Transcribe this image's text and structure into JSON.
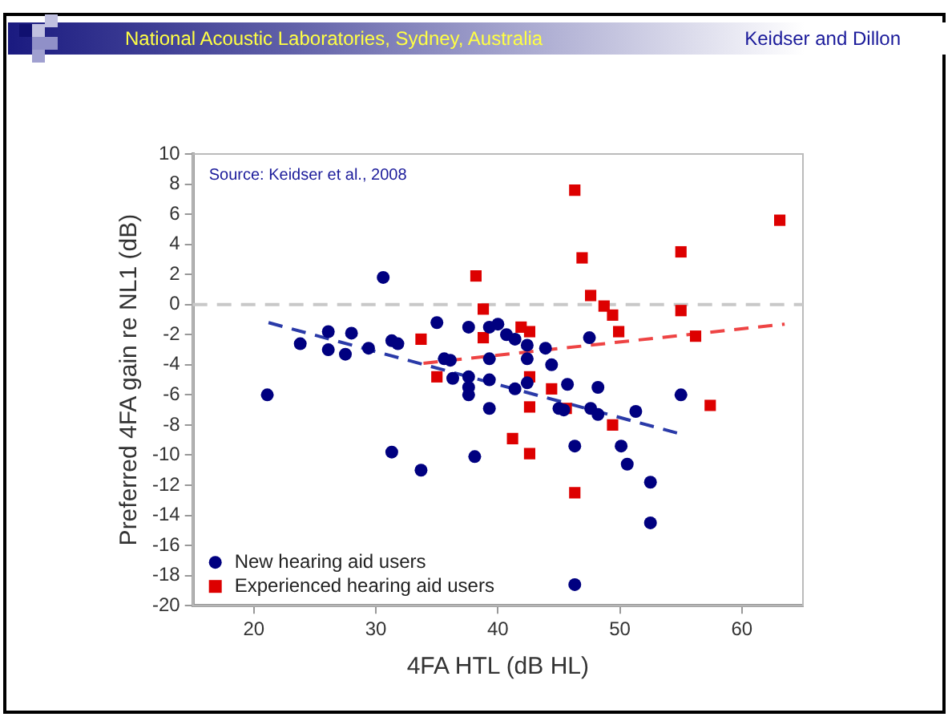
{
  "chart_data": {
    "type": "scatter",
    "xlabel": "4FA HTL (dB HL)",
    "ylabel": "Preferred 4FA gain re NL1 (dB)",
    "annotations": [
      "National Acoustic Laboratories, Sydney, Australia",
      "Keidser and Dillon",
      "Source: Keidser et al., 2008"
    ],
    "xlim": [
      15,
      65
    ],
    "xticks": [
      20,
      30,
      40,
      50,
      60
    ],
    "ylim": [
      -20,
      10
    ],
    "yticks": [
      -20,
      -18,
      -16,
      -14,
      -12,
      -10,
      -8,
      -6,
      -4,
      -2,
      0,
      2,
      4,
      6,
      8,
      10
    ],
    "legend": "bottom left",
    "ref_lines": [
      {
        "axis": "y",
        "value": 0,
        "color": "#c8c8c8",
        "line_style": "dashed"
      }
    ],
    "series": [
      {
        "name": "New hearing aid users",
        "color": "#000080",
        "marker": "circle",
        "x": [
          21.1,
          23.8,
          26.1,
          26.1,
          27.5,
          28.0,
          29.4,
          30.6,
          31.3,
          31.8,
          35.0,
          35.6,
          36.1,
          36.3,
          37.6,
          37.6,
          37.6,
          37.6,
          39.3,
          39.3,
          39.3,
          39.3,
          40.0,
          40.7,
          41.4,
          41.4,
          42.4,
          42.4,
          42.4,
          43.9,
          44.4,
          45.0,
          45.4,
          45.7,
          47.5,
          47.6,
          48.2,
          48.2,
          51.3,
          55.0,
          31.3,
          33.7,
          38.1,
          46.3,
          50.1,
          50.6,
          52.5,
          52.5,
          46.3
        ],
        "values": [
          -6.0,
          -2.6,
          -1.8,
          -3.0,
          -3.3,
          -1.9,
          -2.9,
          1.8,
          -2.4,
          -2.6,
          -1.2,
          -3.6,
          -3.7,
          -4.9,
          -1.5,
          -4.8,
          -5.5,
          -6.0,
          -1.5,
          -3.6,
          -5.0,
          -6.9,
          -1.3,
          -2.0,
          -2.3,
          -5.6,
          -2.7,
          -3.6,
          -5.2,
          -2.9,
          -4.0,
          -6.9,
          -7.0,
          -5.3,
          -2.2,
          -6.9,
          -7.3,
          -5.5,
          -7.1,
          -6.0,
          -9.8,
          -11.0,
          -10.1,
          -9.4,
          -9.4,
          -10.6,
          -11.8,
          -14.5,
          -18.6
        ]
      },
      {
        "name": "Experienced hearing aid users",
        "color": "#dd0000",
        "marker": "square",
        "x": [
          46.3,
          63.1,
          46.9,
          55.0,
          38.2,
          47.6,
          38.8,
          48.7,
          49.4,
          55.0,
          49.9,
          38.8,
          41.9,
          42.6,
          33.7,
          56.2,
          35.0,
          42.6,
          44.4,
          42.6,
          45.6,
          57.4,
          49.4,
          41.2,
          42.6,
          46.3
        ],
        "values": [
          7.6,
          5.6,
          3.1,
          3.5,
          1.9,
          0.6,
          -0.3,
          -0.1,
          -0.7,
          -0.4,
          -1.8,
          -2.2,
          -1.5,
          -1.8,
          -2.3,
          -2.1,
          -4.8,
          -4.8,
          -5.6,
          -6.8,
          -6.9,
          -6.7,
          -8.0,
          -8.9,
          -9.9,
          -12.5
        ]
      },
      {
        "type": "line",
        "color": "#2a3aa8",
        "line_style": "dashed",
        "x": [
          21.2,
          55.0
        ],
        "values": [
          -1.2,
          -8.6
        ]
      },
      {
        "type": "line",
        "color": "#ee4444",
        "line_style": "dashed",
        "x": [
          33.9,
          63.5
        ],
        "values": [
          -3.9,
          -1.3
        ]
      }
    ]
  }
}
